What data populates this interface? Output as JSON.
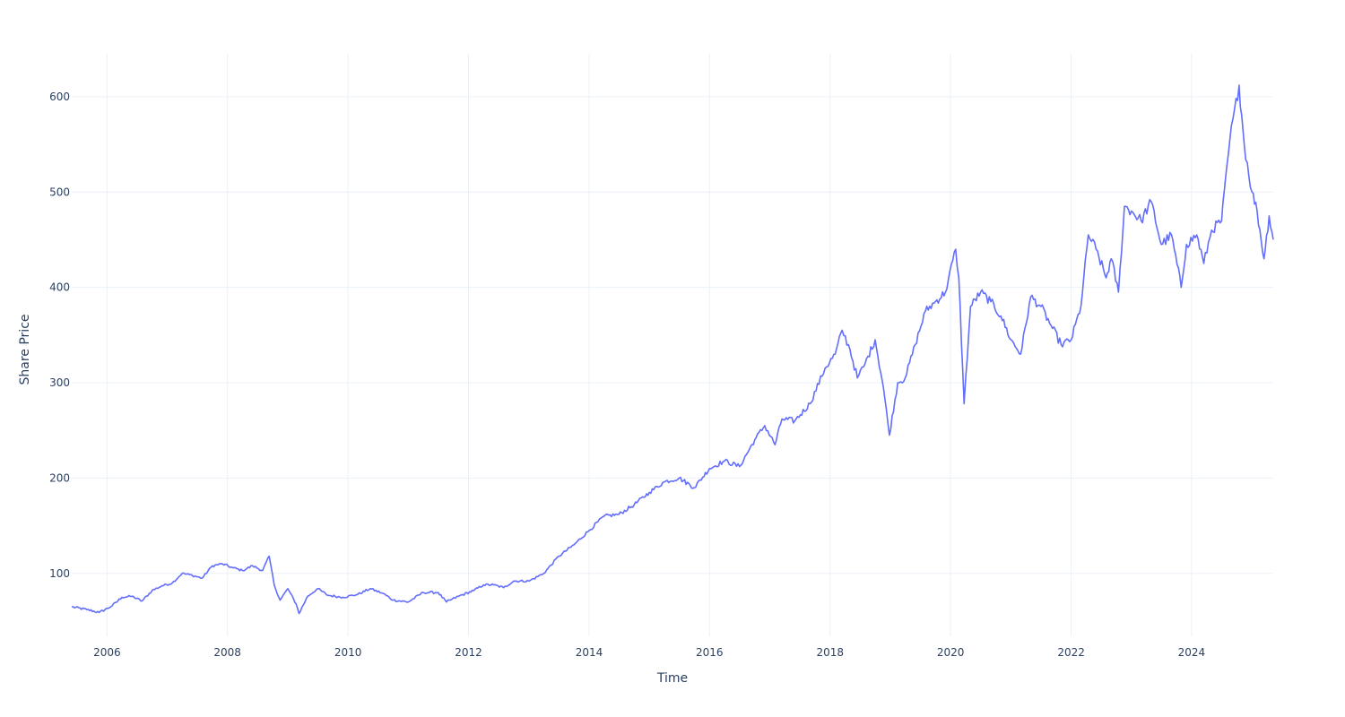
{
  "chart_data": {
    "type": "line",
    "title": "",
    "xlabel": "Time",
    "ylabel": "Share Price",
    "x_ticks": [
      "2006",
      "2008",
      "2010",
      "2012",
      "2014",
      "2016",
      "2018",
      "2020",
      "2022",
      "2024"
    ],
    "y_ticks": [
      100,
      200,
      300,
      400,
      500,
      600
    ],
    "xlim": [
      "2005-06-01",
      "2025-05-10"
    ],
    "ylim": [
      34,
      645
    ],
    "grid": true,
    "legend": "none",
    "series": [
      {
        "color": "#636efa",
        "points": [
          [
            "2005-06-01",
            65
          ],
          [
            "2005-09-01",
            62
          ],
          [
            "2005-11-15",
            59
          ],
          [
            "2006-02-01",
            66
          ],
          [
            "2006-04-01",
            75
          ],
          [
            "2006-06-01",
            76
          ],
          [
            "2006-08-01",
            71
          ],
          [
            "2006-10-01",
            82
          ],
          [
            "2006-12-01",
            87
          ],
          [
            "2007-02-01",
            90
          ],
          [
            "2007-04-01",
            100
          ],
          [
            "2007-06-01",
            98
          ],
          [
            "2007-08-01",
            95
          ],
          [
            "2007-10-01",
            108
          ],
          [
            "2007-12-01",
            110
          ],
          [
            "2008-02-01",
            106
          ],
          [
            "2008-04-01",
            103
          ],
          [
            "2008-06-01",
            108
          ],
          [
            "2008-08-01",
            103
          ],
          [
            "2008-09-10",
            118
          ],
          [
            "2008-10-10",
            88
          ],
          [
            "2008-11-15",
            72
          ],
          [
            "2009-01-01",
            84
          ],
          [
            "2009-02-20",
            68
          ],
          [
            "2009-03-10",
            58
          ],
          [
            "2009-05-01",
            76
          ],
          [
            "2009-07-01",
            84
          ],
          [
            "2009-09-01",
            77
          ],
          [
            "2009-12-01",
            75
          ],
          [
            "2010-03-01",
            78
          ],
          [
            "2010-05-15",
            84
          ],
          [
            "2010-08-01",
            79
          ],
          [
            "2010-10-01",
            72
          ],
          [
            "2011-01-01",
            70
          ],
          [
            "2011-04-01",
            80
          ],
          [
            "2011-07-01",
            80
          ],
          [
            "2011-08-20",
            70
          ],
          [
            "2011-11-01",
            76
          ],
          [
            "2012-02-01",
            82
          ],
          [
            "2012-04-01",
            88
          ],
          [
            "2012-06-01",
            88
          ],
          [
            "2012-08-01",
            85
          ],
          [
            "2012-10-01",
            92
          ],
          [
            "2013-01-01",
            92
          ],
          [
            "2013-04-01",
            100
          ],
          [
            "2013-07-01",
            118
          ],
          [
            "2013-10-01",
            130
          ],
          [
            "2014-01-01",
            145
          ],
          [
            "2014-04-01",
            160
          ],
          [
            "2014-07-01",
            162
          ],
          [
            "2014-10-01",
            172
          ],
          [
            "2015-01-01",
            185
          ],
          [
            "2015-04-01",
            196
          ],
          [
            "2015-07-01",
            200
          ],
          [
            "2015-10-01",
            190
          ],
          [
            "2016-01-01",
            210
          ],
          [
            "2016-04-01",
            218
          ],
          [
            "2016-07-01",
            212
          ],
          [
            "2016-10-01",
            240
          ],
          [
            "2016-12-01",
            255
          ],
          [
            "2017-02-01",
            235
          ],
          [
            "2017-03-15",
            262
          ],
          [
            "2017-06-01",
            260
          ],
          [
            "2017-09-01",
            278
          ],
          [
            "2017-12-01",
            315
          ],
          [
            "2018-02-01",
            330
          ],
          [
            "2018-03-15",
            355
          ],
          [
            "2018-05-01",
            335
          ],
          [
            "2018-06-15",
            305
          ],
          [
            "2018-08-01",
            320
          ],
          [
            "2018-10-01",
            345
          ],
          [
            "2018-11-20",
            295
          ],
          [
            "2018-12-26",
            245
          ],
          [
            "2019-02-15",
            300
          ],
          [
            "2019-04-01",
            305
          ],
          [
            "2019-06-01",
            340
          ],
          [
            "2019-08-01",
            375
          ],
          [
            "2019-10-01",
            385
          ],
          [
            "2019-12-01",
            395
          ],
          [
            "2020-02-01",
            440
          ],
          [
            "2020-02-20",
            410
          ],
          [
            "2020-03-23",
            278
          ],
          [
            "2020-05-01",
            380
          ],
          [
            "2020-07-01",
            395
          ],
          [
            "2020-09-01",
            385
          ],
          [
            "2020-11-01",
            370
          ],
          [
            "2021-01-01",
            345
          ],
          [
            "2021-03-01",
            330
          ],
          [
            "2021-05-01",
            390
          ],
          [
            "2021-07-01",
            380
          ],
          [
            "2021-09-01",
            360
          ],
          [
            "2021-11-01",
            340
          ],
          [
            "2022-01-01",
            345
          ],
          [
            "2022-03-01",
            380
          ],
          [
            "2022-04-15",
            455
          ],
          [
            "2022-06-01",
            440
          ],
          [
            "2022-08-01",
            410
          ],
          [
            "2022-09-01",
            430
          ],
          [
            "2022-10-15",
            395
          ],
          [
            "2022-11-20",
            485
          ],
          [
            "2023-01-01",
            480
          ],
          [
            "2023-03-01",
            470
          ],
          [
            "2023-05-01",
            490
          ],
          [
            "2023-07-01",
            445
          ],
          [
            "2023-09-01",
            455
          ],
          [
            "2023-10-30",
            400
          ],
          [
            "2023-12-01",
            445
          ],
          [
            "2024-02-01",
            455
          ],
          [
            "2024-03-15",
            425
          ],
          [
            "2024-05-01",
            460
          ],
          [
            "2024-07-01",
            470
          ],
          [
            "2024-08-20",
            555
          ],
          [
            "2024-10-15",
            612
          ],
          [
            "2024-11-15",
            550
          ],
          [
            "2025-01-01",
            500
          ],
          [
            "2025-02-01",
            480
          ],
          [
            "2025-03-15",
            430
          ],
          [
            "2025-04-15",
            475
          ],
          [
            "2025-05-10",
            450
          ]
        ]
      }
    ]
  }
}
